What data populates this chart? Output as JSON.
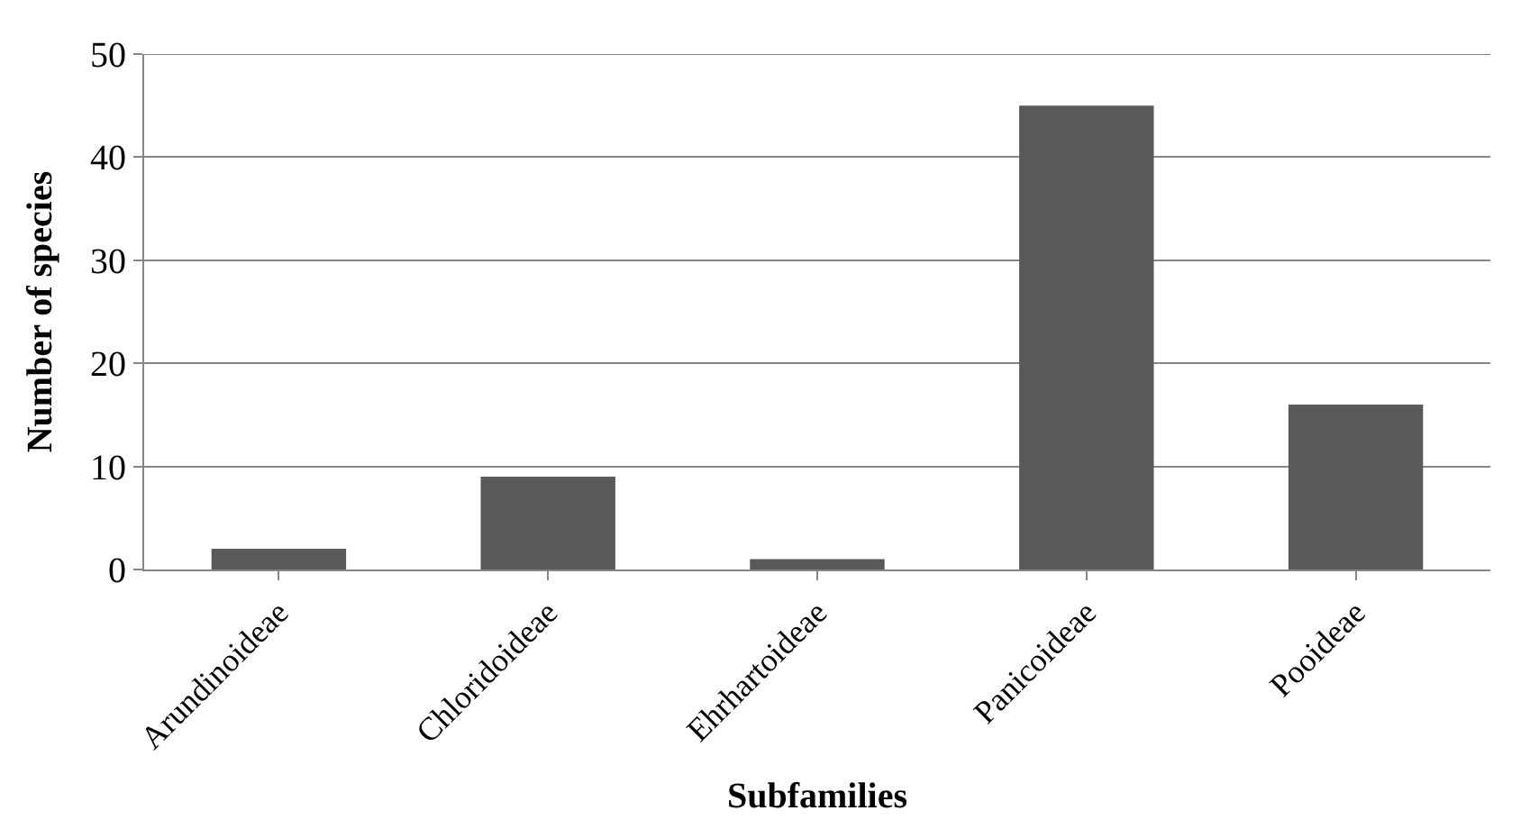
{
  "chart_data": {
    "type": "bar",
    "xlabel": "Subfamilies",
    "ylabel": "Number of species",
    "categories": [
      "Arundinoideae",
      "Chloridoideae",
      "Ehrhartoideae",
      "Panicoideae",
      "Pooideae"
    ],
    "values": [
      2,
      9,
      1,
      45,
      16
    ],
    "color": "#595959",
    "ylim": [
      0,
      50
    ],
    "yticks": [
      0,
      10,
      20,
      30,
      40,
      50
    ],
    "grid": "y"
  }
}
